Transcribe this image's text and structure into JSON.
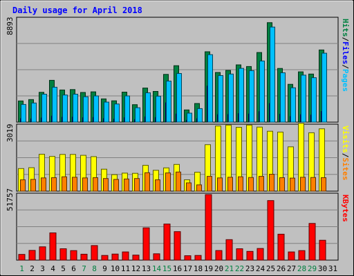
{
  "chart_data": {
    "type": "bar",
    "title": "Daily usage for April 2018",
    "days": [
      "1",
      "2",
      "3",
      "4",
      "5",
      "6",
      "7",
      "8",
      "9",
      "10",
      "11",
      "12",
      "13",
      "14",
      "15",
      "16",
      "17",
      "18",
      "19",
      "20",
      "21",
      "22",
      "23",
      "24",
      "25",
      "26",
      "27",
      "28",
      "29",
      "30",
      "31"
    ],
    "weekend_days": [
      "1",
      "7",
      "8",
      "14",
      "15",
      "21",
      "22",
      "28",
      "29"
    ],
    "panels": [
      {
        "name": "hits-files-pages",
        "max_label": "8893",
        "ymax": 8893,
        "right_labels": [
          "Pages",
          "Files",
          "Hits"
        ],
        "right_colors": [
          "#00c0ff",
          "#0000ff",
          "#008040"
        ],
        "series": [
          {
            "name": "Hits",
            "color": "#008040",
            "values": [
              1820,
              1940,
              2560,
              3590,
              2760,
              2800,
              2550,
              2600,
              2000,
              1830,
              2580,
              1500,
              2930,
              2640,
              4100,
              4850,
              1050,
              1600,
              6050,
              4270,
              4440,
              4920,
              4780,
              5980,
              8550,
              4610,
              3250,
              4320,
              4130,
              6200,
              0
            ]
          },
          {
            "name": "Files",
            "color": "#0000ff",
            "values": [
              300,
              280,
              360,
              520,
              420,
              430,
              380,
              400,
              300,
              260,
              380,
              220,
              450,
              400,
              1660,
              700,
              160,
              290,
              3100,
              640,
              650,
              730,
              700,
              900,
              1600,
              680,
              480,
              640,
              610,
              920,
              0
            ]
          },
          {
            "name": "Pages",
            "color": "#00c0ff",
            "values": [
              1520,
              1640,
              2400,
              3000,
              2330,
              2400,
              2180,
              2250,
              1720,
              1560,
              2250,
              1240,
              2520,
              2230,
              3530,
              4180,
              770,
              1160,
              5800,
              4000,
              4130,
              4620,
              4420,
              5250,
              8170,
              4240,
              2950,
              4040,
              3820,
              5920,
              0
            ]
          }
        ]
      },
      {
        "name": "visits-sites",
        "max_label": "3019",
        "ymax": 3019,
        "right_labels": [
          "Sites",
          "Visits"
        ],
        "right_colors": [
          "#ff8000",
          "#ffff00"
        ],
        "series": [
          {
            "name": "Visits",
            "color": "#ffff00",
            "values": [
              1040,
              1080,
              1700,
              1600,
              1690,
              1690,
              1650,
              1590,
              1010,
              760,
              830,
              820,
              1190,
              960,
              1070,
              1230,
              520,
              870,
              2140,
              3000,
              3040,
              2940,
              3040,
              2950,
              2760,
              2720,
              2040,
              3120,
              2690,
              2870,
              0
            ]
          },
          {
            "name": "Sites",
            "color": "#ff8000",
            "values": [
              520,
              540,
              610,
              620,
              660,
              640,
              610,
              620,
              580,
              540,
              560,
              580,
              850,
              520,
              840,
              880,
              380,
              290,
              680,
              610,
              640,
              660,
              630,
              680,
              780,
              620,
              600,
              640,
              630,
              620,
              0
            ]
          }
        ]
      },
      {
        "name": "kbytes",
        "max_label": "51757",
        "ymax": 51757,
        "right_labels": [
          "KBytes"
        ],
        "right_colors": [
          "#ff0000"
        ],
        "series": [
          {
            "name": "KBytes",
            "color": "#ff0000",
            "values": [
              4500,
              7700,
              10500,
              21500,
              9000,
              7500,
              4700,
              11500,
              3700,
              4800,
              6500,
              4000,
              25500,
              5000,
              28500,
              22500,
              3500,
              3700,
              51757,
              7600,
              16200,
              9000,
              6900,
              9200,
              47000,
              20500,
              6500,
              7500,
              29000,
              15700,
              0
            ]
          }
        ]
      }
    ]
  }
}
